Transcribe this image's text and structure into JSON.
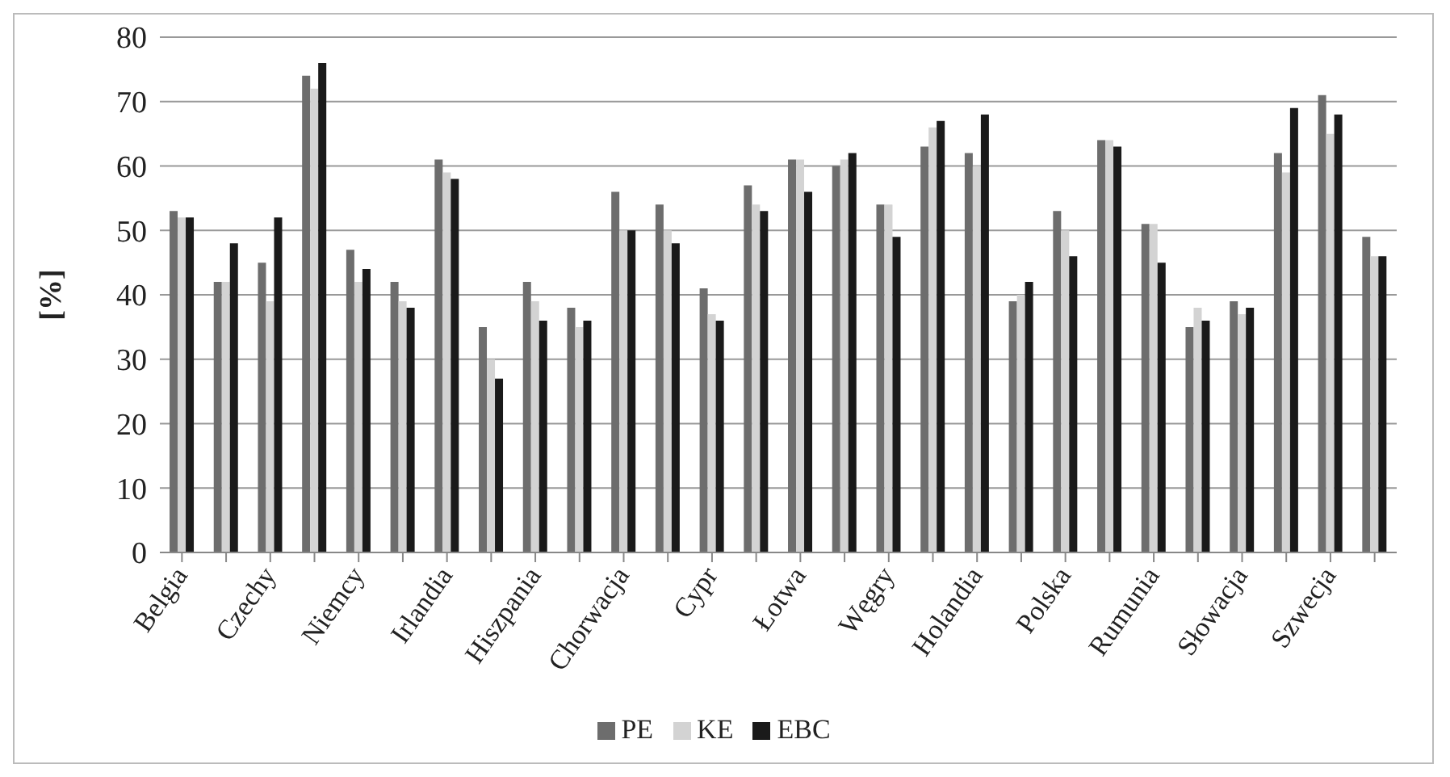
{
  "chart_data": {
    "type": "bar",
    "ylabel": "[%]",
    "categories": [
      "Belgia",
      null,
      "Czechy",
      null,
      "Niemcy",
      null,
      "Irlandia",
      null,
      "Hiszpania",
      null,
      "Chorwacja",
      null,
      "Cypr",
      null,
      "Łotwa",
      null,
      "Węgry",
      null,
      "Holandia",
      null,
      "Polska",
      null,
      "Rumunia",
      null,
      "Słowacja",
      null,
      "Szwecja",
      null
    ],
    "series": [
      {
        "name": "PE",
        "color": "#6d6d6d",
        "values": [
          53,
          42,
          45,
          74,
          47,
          42,
          61,
          35,
          42,
          38,
          56,
          54,
          41,
          57,
          61,
          60,
          54,
          63,
          62,
          39,
          53,
          64,
          51,
          35,
          39,
          62,
          71,
          49
        ]
      },
      {
        "name": "KE",
        "color": "#d3d3d3",
        "values": [
          52,
          42,
          39,
          72,
          42,
          39,
          59,
          30,
          39,
          35,
          50,
          50,
          37,
          54,
          61,
          61,
          54,
          66,
          60,
          40,
          50,
          64,
          51,
          38,
          37,
          59,
          65,
          46
        ]
      },
      {
        "name": "EBC",
        "color": "#1a1a1a",
        "values": [
          52,
          48,
          52,
          76,
          44,
          38,
          58,
          27,
          36,
          36,
          50,
          48,
          36,
          53,
          56,
          62,
          49,
          67,
          68,
          42,
          46,
          63,
          45,
          36,
          38,
          69,
          68,
          46
        ]
      }
    ],
    "ylim": [
      0,
      80
    ],
    "yticks": [
      0,
      10,
      20,
      30,
      40,
      50,
      60,
      70,
      80
    ],
    "grid": "y",
    "legend": "bottom"
  }
}
